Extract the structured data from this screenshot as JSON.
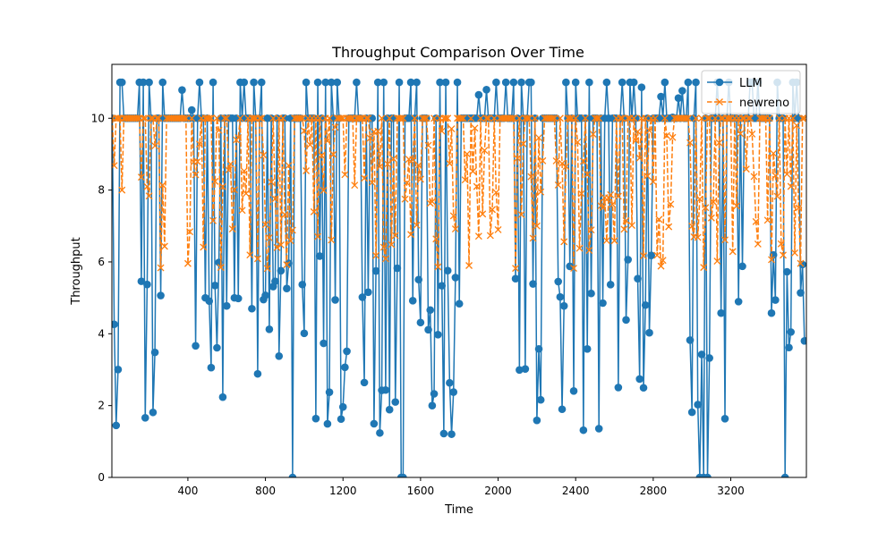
{
  "chart_data": {
    "type": "line",
    "title": "Throughput Comparison Over Time",
    "xlabel": "Time",
    "ylabel": "Throughput",
    "xlim": [
      8,
      3590
    ],
    "ylim": [
      0,
      11.5
    ],
    "x_ticks": [
      400,
      800,
      1200,
      1600,
      2000,
      2400,
      2800,
      3200
    ],
    "y_ticks": [
      0,
      2,
      4,
      6,
      8,
      10
    ],
    "grid": false,
    "legend_position": "top-right",
    "x": {
      "start": 10,
      "end": 3580,
      "step": 10
    },
    "series": [
      {
        "name": "LLM",
        "color": "#1f77b4",
        "marker": "circle",
        "linestyle": "solid",
        "baseline_value": 10,
        "high_value": 11,
        "dip_ranges": [
          [
            10,
            40
          ],
          [
            150,
            260
          ],
          [
            440,
            700
          ],
          [
            720,
            940
          ],
          [
            990,
            1220
          ],
          [
            1300,
            1520
          ],
          [
            1560,
            1800
          ],
          [
            2090,
            2230
          ],
          [
            2290,
            2490
          ],
          [
            2520,
            2730
          ],
          [
            2750,
            2790
          ],
          [
            2980,
            3090
          ],
          [
            3130,
            3280
          ],
          [
            3410,
            3580
          ]
        ],
        "dip_value_range": [
          1.2,
          6.2
        ],
        "zero_points": [
          940,
          1500,
          1510,
          3040,
          3060,
          3080,
          3480
        ],
        "value_seed": 7
      },
      {
        "name": "newreno",
        "color": "#ff7f0e",
        "marker": "x",
        "linestyle": "dashed",
        "baseline_value": 10,
        "dip_value_range": [
          5.8,
          9.8
        ],
        "dip_ranges": [
          [
            10,
            60
          ],
          [
            140,
            280
          ],
          [
            400,
            720
          ],
          [
            760,
            940
          ],
          [
            990,
            1260
          ],
          [
            1300,
            1600
          ],
          [
            1640,
            2000
          ],
          [
            2080,
            2240
          ],
          [
            2290,
            2500
          ],
          [
            2520,
            2780
          ],
          [
            2800,
            2900
          ],
          [
            2980,
            3340
          ],
          [
            3360,
            3560
          ]
        ],
        "value_seed": 13
      }
    ]
  }
}
